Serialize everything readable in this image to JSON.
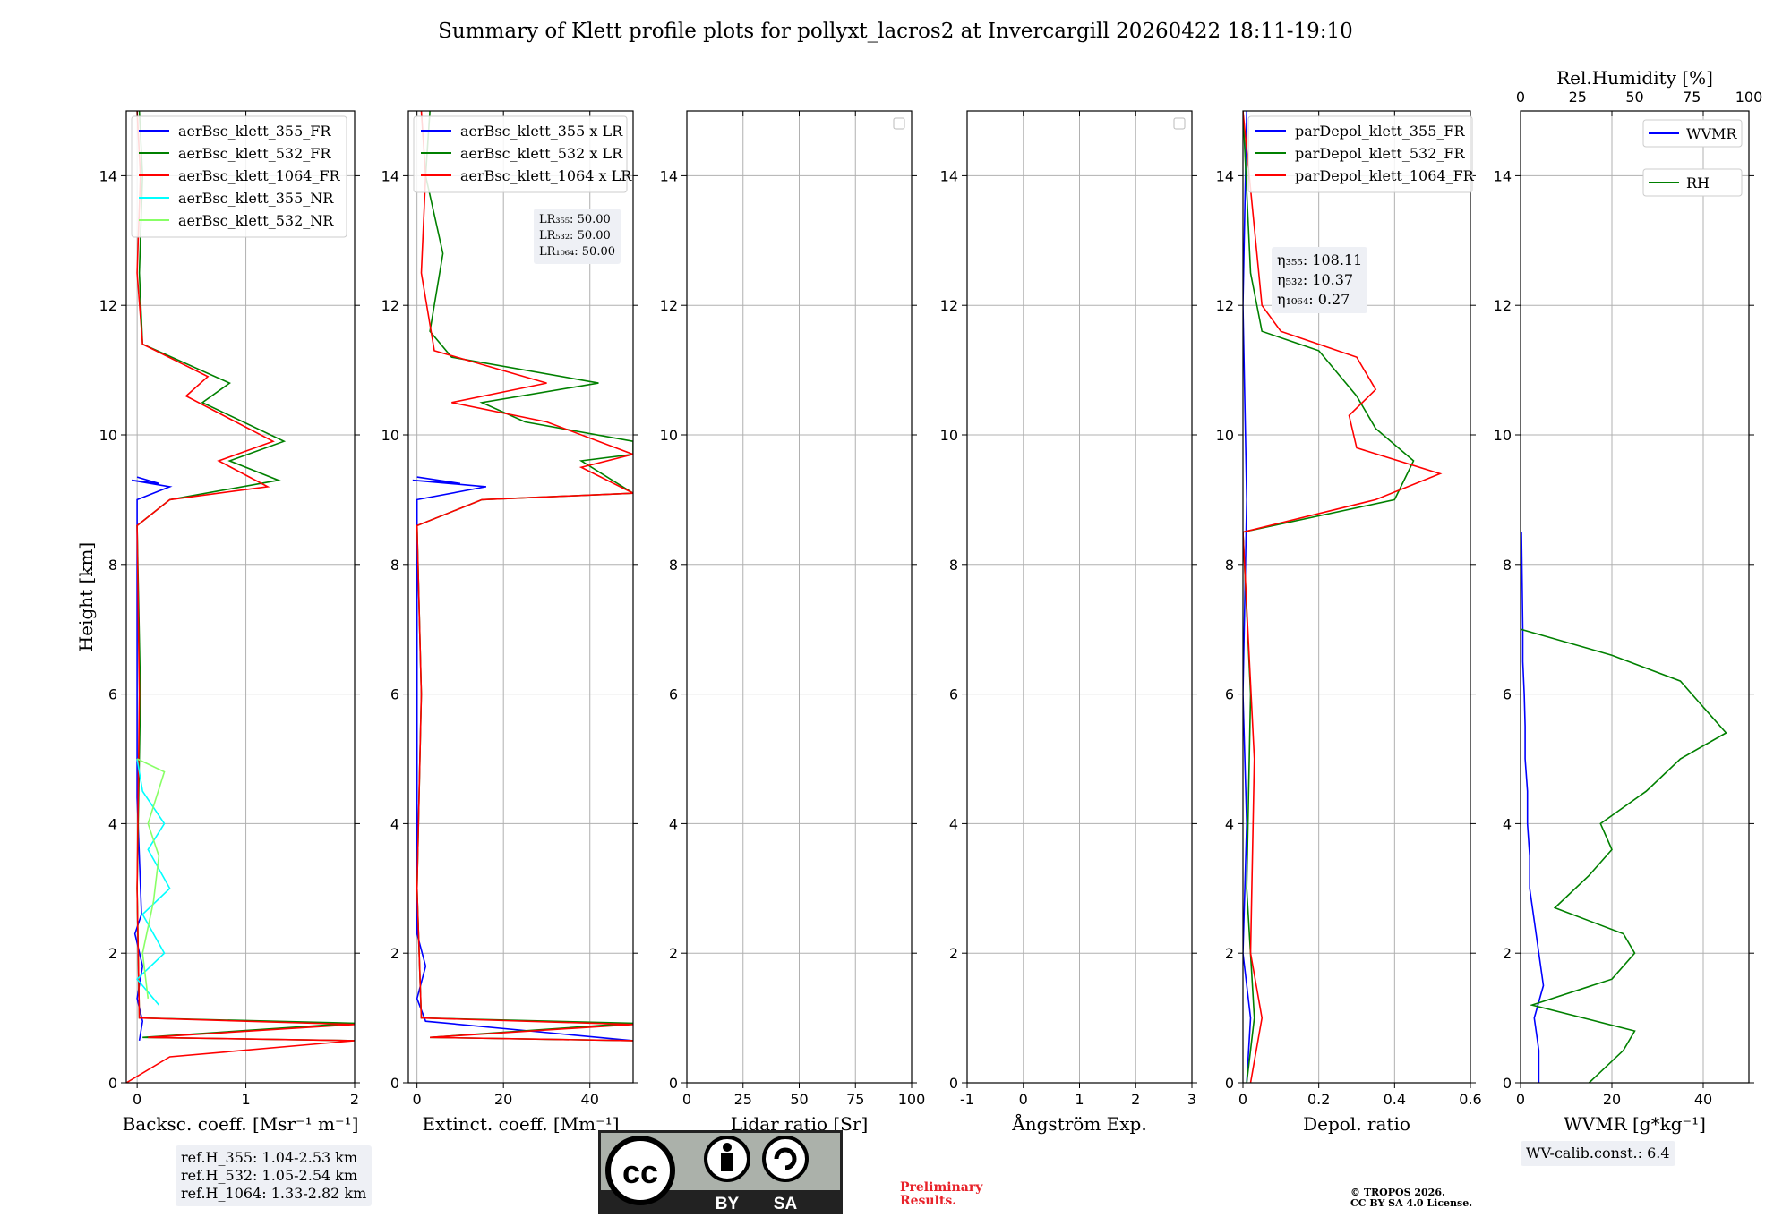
{
  "title": "Summary of Klett profile plots for pollyxt_lacros2 at Invercargill 20260422 18:11-19:10",
  "colors": {
    "blue": "#0000ff",
    "green": "#008000",
    "red": "#ff0000",
    "cyan": "#00ffff",
    "lightgreen": "#88ff66"
  },
  "ylabel": "Height [km]",
  "ylim": [
    0,
    15
  ],
  "yticks": [
    0,
    2,
    4,
    6,
    8,
    10,
    12,
    14
  ],
  "chart_data": [
    {
      "type": "line",
      "xlabel": "Backsc. coeff. [Msr⁻¹ m⁻¹]",
      "xlim": [
        -0.1,
        2
      ],
      "xticks": [
        0,
        1,
        2
      ],
      "legend": {
        "location": "top-left",
        "entries": [
          "aerBsc_klett_355_FR",
          "aerBsc_klett_532_FR",
          "aerBsc_klett_1064_FR",
          "aerBsc_klett_355_NR",
          "aerBsc_klett_532_NR"
        ]
      },
      "series": [
        {
          "name": "aerBsc_klett_355_FR",
          "color": "blue",
          "points": [
            [
              0.02,
              0.65
            ],
            [
              0.05,
              0.95
            ],
            [
              0.0,
              1.3
            ],
            [
              0.05,
              1.8
            ],
            [
              -0.02,
              2.3
            ],
            [
              0.04,
              2.6
            ],
            [
              0.0,
              4.4
            ],
            [
              0.0,
              9.0
            ],
            [
              0.3,
              9.2
            ],
            [
              -0.05,
              9.3
            ],
            [
              0.2,
              9.25
            ],
            [
              0.0,
              9.35
            ]
          ]
        },
        {
          "name": "aerBsc_klett_532_FR",
          "color": "green",
          "points": [
            [
              2,
              0.65
            ],
            [
              0.05,
              0.7
            ],
            [
              2,
              0.92
            ],
            [
              0.02,
              1.0
            ],
            [
              0.0,
              3.0
            ],
            [
              0.03,
              6.0
            ],
            [
              0.0,
              8.6
            ],
            [
              0.3,
              9.0
            ],
            [
              1.3,
              9.3
            ],
            [
              0.85,
              9.6
            ],
            [
              1.35,
              9.9
            ],
            [
              0.6,
              10.5
            ],
            [
              0.85,
              10.8
            ],
            [
              0.05,
              11.4
            ],
            [
              0.02,
              12.5
            ],
            [
              0.05,
              14.0
            ],
            [
              0.02,
              15.0
            ]
          ]
        },
        {
          "name": "aerBsc_klett_1064_FR",
          "color": "red",
          "points": [
            [
              -0.1,
              0.0
            ],
            [
              0.3,
              0.4
            ],
            [
              2,
              0.65
            ],
            [
              0.1,
              0.7
            ],
            [
              2,
              0.9
            ],
            [
              0.02,
              1.0
            ],
            [
              0.0,
              3.0
            ],
            [
              0.02,
              6.0
            ],
            [
              0.0,
              8.6
            ],
            [
              0.3,
              9.0
            ],
            [
              1.2,
              9.2
            ],
            [
              0.75,
              9.6
            ],
            [
              1.25,
              9.9
            ],
            [
              0.45,
              10.6
            ],
            [
              0.65,
              10.9
            ],
            [
              0.05,
              11.4
            ],
            [
              0.0,
              12.5
            ],
            [
              0.03,
              14.0
            ],
            [
              0.0,
              15.0
            ]
          ]
        },
        {
          "name": "aerBsc_klett_355_NR",
          "color": "cyan",
          "points": [
            [
              0.2,
              1.2
            ],
            [
              0.0,
              1.6
            ],
            [
              0.25,
              2.0
            ],
            [
              0.05,
              2.6
            ],
            [
              0.3,
              3.0
            ],
            [
              0.1,
              3.6
            ],
            [
              0.25,
              4.0
            ],
            [
              0.05,
              4.5
            ],
            [
              0.0,
              5.0
            ]
          ]
        },
        {
          "name": "aerBsc_klett_532_NR",
          "color": "lightgreen",
          "points": [
            [
              0.1,
              1.3
            ],
            [
              0.05,
              2.0
            ],
            [
              0.15,
              2.8
            ],
            [
              0.2,
              3.5
            ],
            [
              0.1,
              4.0
            ],
            [
              0.25,
              4.8
            ],
            [
              0.0,
              5.0
            ]
          ]
        }
      ],
      "annotation": [
        "ref.H_355: 1.04-2.53 km",
        "ref.H_532: 1.05-2.54 km",
        "ref.H_1064: 1.33-2.82 km"
      ]
    },
    {
      "type": "line",
      "xlabel": "Extinct. coeff. [Mm⁻¹]",
      "xlim": [
        -2,
        50
      ],
      "xticks": [
        0,
        20,
        40
      ],
      "legend": {
        "location": "top-left",
        "entries": [
          "aerBsc_klett_355 x LR",
          "aerBsc_klett_532 x LR",
          "aerBsc_klett_1064 x LR"
        ]
      },
      "series": [
        {
          "name": "aerBsc_klett_355 x LR",
          "color": "blue",
          "points": [
            [
              50,
              0.65
            ],
            [
              2,
              0.95
            ],
            [
              0,
              1.3
            ],
            [
              2,
              1.8
            ],
            [
              0,
              2.3
            ],
            [
              0,
              9.0
            ],
            [
              16,
              9.2
            ],
            [
              -1,
              9.3
            ],
            [
              10,
              9.25
            ],
            [
              0,
              9.35
            ]
          ]
        },
        {
          "name": "aerBsc_klett_532 x LR",
          "color": "green",
          "points": [
            [
              50,
              0.65
            ],
            [
              3,
              0.7
            ],
            [
              50,
              0.92
            ],
            [
              1,
              1.0
            ],
            [
              0,
              3.0
            ],
            [
              1,
              6.0
            ],
            [
              0,
              8.6
            ],
            [
              15,
              9.0
            ],
            [
              50,
              9.1
            ],
            [
              38,
              9.6
            ],
            [
              50,
              9.7
            ],
            [
              50,
              9.9
            ],
            [
              25,
              10.2
            ],
            [
              15,
              10.5
            ],
            [
              42,
              10.8
            ],
            [
              8,
              11.2
            ],
            [
              3,
              11.6
            ],
            [
              6,
              12.8
            ],
            [
              2,
              14.0
            ],
            [
              3,
              15.0
            ]
          ]
        },
        {
          "name": "aerBsc_klett_1064 x LR",
          "color": "red",
          "points": [
            [
              50,
              0.65
            ],
            [
              3,
              0.7
            ],
            [
              50,
              0.9
            ],
            [
              1,
              1.0
            ],
            [
              0,
              3.0
            ],
            [
              1,
              6.0
            ],
            [
              0,
              8.6
            ],
            [
              15,
              9.0
            ],
            [
              50,
              9.1
            ],
            [
              38,
              9.5
            ],
            [
              50,
              9.7
            ],
            [
              30,
              10.2
            ],
            [
              8,
              10.5
            ],
            [
              30,
              10.8
            ],
            [
              4,
              11.3
            ],
            [
              1,
              12.5
            ],
            [
              2,
              14.0
            ],
            [
              1,
              15.0
            ]
          ]
        }
      ],
      "annotation": [
        "LR₃₅₅: 50.00",
        "LR₅₃₂: 50.00",
        "LR₁₀₆₄: 50.00"
      ]
    },
    {
      "type": "line",
      "xlabel": "Lidar ratio [Sr]",
      "xlim": [
        0,
        100
      ],
      "xticks": [
        0,
        25,
        50,
        75,
        100
      ],
      "series": []
    },
    {
      "type": "line",
      "xlabel": "Ångström Exp.",
      "xlim": [
        -1,
        3
      ],
      "xticks": [
        -1,
        0,
        1,
        2,
        3
      ],
      "series": []
    },
    {
      "type": "line",
      "xlabel": "Depol. ratio",
      "xlim": [
        0,
        0.6
      ],
      "xticks": [
        0.0,
        0.2,
        0.4,
        0.6
      ],
      "legend": {
        "location": "top-left",
        "entries": [
          "parDepol_klett_355_FR",
          "parDepol_klett_532_FR",
          "parDepol_klett_1064_FR"
        ]
      },
      "series": [
        {
          "name": "parDepol_klett_355_FR",
          "color": "blue",
          "points": [
            [
              0.01,
              0.0
            ],
            [
              0.02,
              1.0
            ],
            [
              0.0,
              2.0
            ],
            [
              0.01,
              4.0
            ],
            [
              0.0,
              6.0
            ],
            [
              0.01,
              9.0
            ],
            [
              0.0,
              12.0
            ],
            [
              0.01,
              15.0
            ]
          ]
        },
        {
          "name": "parDepol_klett_532_FR",
          "color": "green",
          "points": [
            [
              0.01,
              0.0
            ],
            [
              0.03,
              1.0
            ],
            [
              0.01,
              3.0
            ],
            [
              0.02,
              6.0
            ],
            [
              0.0,
              8.5
            ],
            [
              0.4,
              9.0
            ],
            [
              0.45,
              9.6
            ],
            [
              0.35,
              10.1
            ],
            [
              0.3,
              10.6
            ],
            [
              0.2,
              11.3
            ],
            [
              0.05,
              11.6
            ],
            [
              0.02,
              12.5
            ],
            [
              0.0,
              15.0
            ]
          ]
        },
        {
          "name": "parDepol_klett_1064_FR",
          "color": "red",
          "points": [
            [
              0.02,
              0.0
            ],
            [
              0.05,
              1.0
            ],
            [
              0.02,
              2.0
            ],
            [
              0.03,
              5.0
            ],
            [
              0.0,
              8.5
            ],
            [
              0.35,
              9.0
            ],
            [
              0.52,
              9.4
            ],
            [
              0.3,
              9.8
            ],
            [
              0.28,
              10.3
            ],
            [
              0.35,
              10.7
            ],
            [
              0.3,
              11.2
            ],
            [
              0.1,
              11.6
            ],
            [
              0.05,
              12.0
            ],
            [
              0.0,
              15.0
            ]
          ]
        }
      ],
      "annotation": [
        "η₃₅₅: 108.11",
        "η₅₃₂: 10.37",
        "η₁₀₆₄: 0.27"
      ]
    },
    {
      "type": "line",
      "xlabel": "WVMR [g*kg⁻¹]",
      "xlim": [
        0,
        50
      ],
      "xticks": [
        0,
        20,
        40
      ],
      "top_axis": {
        "label": "Rel.Humidity [%]",
        "xlim": [
          0,
          100
        ],
        "xticks": [
          0,
          25,
          50,
          75,
          100
        ]
      },
      "legend": {
        "location": "top-right",
        "entries": [
          "WVMR",
          "RH"
        ]
      },
      "series": [
        {
          "name": "WVMR",
          "color": "blue",
          "axis": "bottom",
          "points": [
            [
              4,
              0.0
            ],
            [
              4,
              0.5
            ],
            [
              3,
              1.0
            ],
            [
              5,
              1.5
            ],
            [
              4,
              2.0
            ],
            [
              3,
              2.5
            ],
            [
              2,
              3.0
            ],
            [
              2,
              3.5
            ],
            [
              1.5,
              4.0
            ],
            [
              1.5,
              4.5
            ],
            [
              1,
              5.0
            ],
            [
              1,
              5.5
            ],
            [
              0.8,
              6.0
            ],
            [
              0.5,
              6.5
            ],
            [
              0.5,
              7.0
            ],
            [
              0.3,
              8.0
            ],
            [
              0.2,
              8.5
            ]
          ]
        },
        {
          "name": "RH",
          "color": "green",
          "axis": "top",
          "points": [
            [
              30,
              0.0
            ],
            [
              45,
              0.5
            ],
            [
              50,
              0.8
            ],
            [
              5,
              1.2
            ],
            [
              40,
              1.6
            ],
            [
              50,
              2.0
            ],
            [
              45,
              2.3
            ],
            [
              15,
              2.7
            ],
            [
              30,
              3.2
            ],
            [
              40,
              3.6
            ],
            [
              35,
              4.0
            ],
            [
              55,
              4.5
            ],
            [
              70,
              5.0
            ],
            [
              90,
              5.4
            ],
            [
              80,
              5.8
            ],
            [
              70,
              6.2
            ],
            [
              40,
              6.6
            ],
            [
              10,
              6.9
            ],
            [
              0,
              7.0
            ]
          ]
        }
      ],
      "annotation": [
        "WV-calib.const.: 6.4"
      ]
    }
  ],
  "footer": {
    "preliminary": [
      "Preliminary",
      "Results."
    ],
    "copyright": [
      "© TROPOS 2026.",
      "CC BY SA 4.0 License."
    ],
    "cc_badge": {
      "cc": "cc",
      "by": "BY",
      "sa": "SA"
    }
  }
}
